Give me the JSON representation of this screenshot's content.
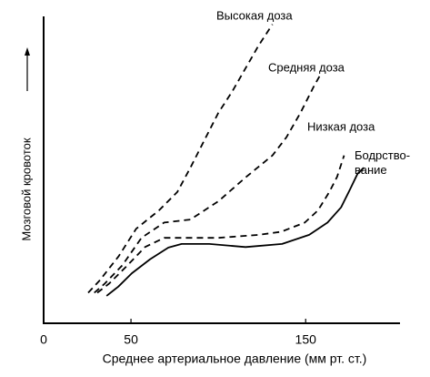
{
  "chart_data": {
    "type": "line",
    "x_label": "Среднее артериальное давление (мм рт. ст.)",
    "y_label": "Мозговой кровоток",
    "xlim": [
      0,
      204
    ],
    "xticks": [
      0,
      50,
      150
    ],
    "ylim": [
      0,
      100
    ],
    "series": [
      {
        "name": "Высокая доза",
        "color": "#000000",
        "dashed": true,
        "x": [
          25.5,
          32,
          43,
          53,
          66,
          76.5,
          84,
          92,
          100,
          108,
          116,
          123,
          131
        ],
        "values": [
          10,
          14,
          22,
          31,
          37,
          43,
          51,
          60,
          69,
          76,
          84,
          91,
          98
        ]
      },
      {
        "name": "Средняя доза",
        "color": "#000000",
        "dashed": true,
        "x": [
          29,
          35,
          45,
          56,
          69,
          84,
          100,
          116,
          131,
          139,
          147,
          155,
          158
        ],
        "values": [
          10,
          13,
          19,
          28,
          33,
          34,
          40,
          48,
          55,
          61,
          69,
          78,
          81
        ]
      },
      {
        "name": "Низкая доза",
        "color": "#000000",
        "dashed": true,
        "x": [
          30.7,
          37.5,
          48,
          58,
          69,
          79,
          100,
          123,
          136,
          149.5,
          157,
          163.5,
          168,
          172
        ],
        "values": [
          10,
          13,
          19,
          25,
          28,
          28,
          28,
          29,
          30,
          33,
          37,
          43,
          48,
          55
        ]
      },
      {
        "name": "Бодрство-\nвание",
        "color": "#000000",
        "dashed": false,
        "x": [
          36,
          42.7,
          50.5,
          61,
          71.4,
          79,
          94.8,
          115.6,
          136.5,
          152,
          162.5,
          170.3,
          175.5,
          179.7,
          183.3
        ],
        "values": [
          9,
          12,
          16.4,
          21,
          24.8,
          26,
          26,
          25,
          26,
          29,
          33,
          38,
          44,
          49,
          51
        ]
      }
    ]
  }
}
